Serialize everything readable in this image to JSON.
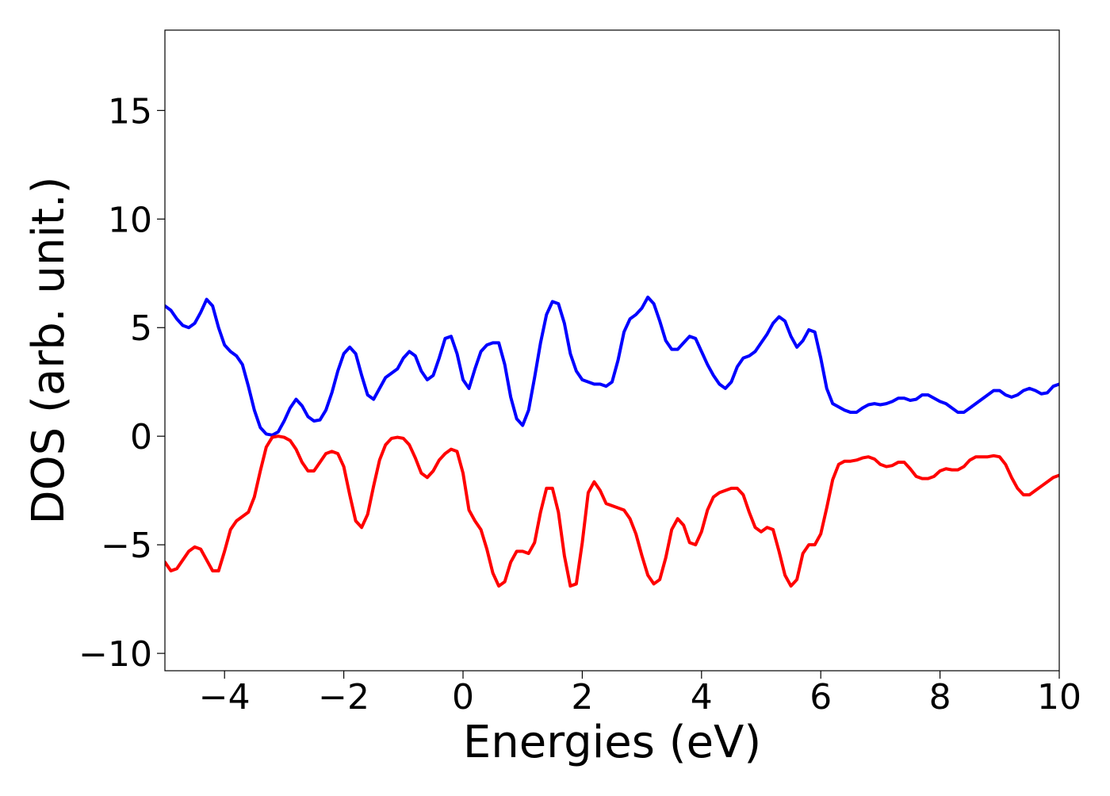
{
  "chart_data": {
    "type": "line",
    "xlabel": "Energies (eV)",
    "ylabel": "DOS (arb. unit.)",
    "xlim": [
      -5,
      10
    ],
    "ylim": [
      -10.8,
      18.7
    ],
    "xticks": [
      {
        "value": -4,
        "label": "−4"
      },
      {
        "value": -2,
        "label": "−2"
      },
      0,
      2,
      4,
      6,
      8,
      10
    ],
    "yticks": [
      {
        "value": -10,
        "label": "−10"
      },
      {
        "value": -5,
        "label": "−5"
      },
      0,
      5,
      10,
      15
    ],
    "x": [
      -5,
      -4.9,
      -4.8,
      -4.7,
      -4.6,
      -4.5,
      -4.4,
      -4.3,
      -4.2,
      -4.1,
      -4,
      -3.9,
      -3.8,
      -3.7,
      -3.6,
      -3.5,
      -3.4,
      -3.3,
      -3.2,
      -3.1,
      -3,
      -2.9,
      -2.8,
      -2.7,
      -2.6,
      -2.5,
      -2.4,
      -2.3,
      -2.2,
      -2.1,
      -2,
      -1.9,
      -1.8,
      -1.7,
      -1.6,
      -1.5,
      -1.4,
      -1.3,
      -1.2,
      -1.1,
      -1,
      -0.9,
      -0.8,
      -0.7,
      -0.6,
      -0.5,
      -0.4,
      -0.3,
      -0.2,
      -0.1,
      0,
      0.1,
      0.2,
      0.3,
      0.4,
      0.5,
      0.6,
      0.7,
      0.8,
      0.9,
      1,
      1.1,
      1.2,
      1.3,
      1.4,
      1.5,
      1.6,
      1.7,
      1.8,
      1.9,
      2,
      2.1,
      2.2,
      2.3,
      2.4,
      2.5,
      2.6,
      2.7,
      2.8,
      2.9,
      3,
      3.1,
      3.2,
      3.3,
      3.4,
      3.5,
      3.6,
      3.7,
      3.8,
      3.9,
      4,
      4.1,
      4.2,
      4.3,
      4.4,
      4.5,
      4.6,
      4.7,
      4.8,
      4.9,
      5,
      5.1,
      5.2,
      5.3,
      5.4,
      5.5,
      5.6,
      5.7,
      5.8,
      5.9,
      6,
      6.1,
      6.2,
      6.3,
      6.4,
      6.5,
      6.6,
      6.7,
      6.8,
      6.9,
      7,
      7.1,
      7.2,
      7.3,
      7.4,
      7.5,
      7.6,
      7.7,
      7.8,
      7.9,
      8,
      8.1,
      8.2,
      8.3,
      8.4,
      8.5,
      8.6,
      8.7,
      8.8,
      8.9,
      9,
      9.1,
      9.2,
      9.3,
      9.4,
      9.5,
      9.6,
      9.7,
      9.8,
      9.9,
      10
    ],
    "series": [
      {
        "color": "#0000ff",
        "values": [
          6.0,
          5.8,
          5.4,
          5.1,
          5.0,
          5.2,
          5.7,
          6.3,
          6.0,
          5.0,
          4.2,
          3.9,
          3.7,
          3.3,
          2.3,
          1.2,
          0.4,
          0.1,
          0.05,
          0.2,
          0.7,
          1.3,
          1.7,
          1.4,
          0.9,
          0.7,
          0.75,
          1.2,
          2.0,
          3.0,
          3.8,
          4.1,
          3.8,
          2.8,
          1.9,
          1.7,
          2.2,
          2.7,
          2.9,
          3.1,
          3.6,
          3.9,
          3.7,
          3.0,
          2.6,
          2.8,
          3.6,
          4.5,
          4.6,
          3.8,
          2.6,
          2.2,
          3.1,
          3.9,
          4.2,
          4.3,
          4.3,
          3.3,
          1.8,
          0.8,
          0.5,
          1.2,
          2.7,
          4.3,
          5.6,
          6.2,
          6.1,
          5.2,
          3.8,
          3.0,
          2.6,
          2.5,
          2.4,
          2.4,
          2.3,
          2.5,
          3.5,
          4.8,
          5.4,
          5.6,
          5.9,
          6.4,
          6.1,
          5.3,
          4.4,
          4.0,
          4.0,
          4.3,
          4.6,
          4.5,
          3.9,
          3.3,
          2.8,
          2.4,
          2.2,
          2.5,
          3.2,
          3.6,
          3.7,
          3.9,
          4.3,
          4.7,
          5.2,
          5.5,
          5.3,
          4.6,
          4.1,
          4.4,
          4.9,
          4.8,
          3.6,
          2.2,
          1.5,
          1.35,
          1.2,
          1.1,
          1.1,
          1.3,
          1.45,
          1.5,
          1.45,
          1.5,
          1.6,
          1.75,
          1.75,
          1.65,
          1.7,
          1.9,
          1.9,
          1.75,
          1.6,
          1.5,
          1.3,
          1.1,
          1.1,
          1.3,
          1.5,
          1.7,
          1.9,
          2.1,
          2.1,
          1.9,
          1.8,
          1.9,
          2.1,
          2.2,
          2.1,
          1.95,
          2.0,
          2.3,
          2.4
        ]
      },
      {
        "color": "#ff0000",
        "values": [
          -5.8,
          -6.2,
          -6.1,
          -5.7,
          -5.3,
          -5.1,
          -5.2,
          -5.7,
          -6.2,
          -6.2,
          -5.3,
          -4.3,
          -3.9,
          -3.7,
          -3.5,
          -2.8,
          -1.6,
          -0.5,
          -0.05,
          0.0,
          -0.05,
          -0.2,
          -0.6,
          -1.2,
          -1.6,
          -1.6,
          -1.2,
          -0.8,
          -0.7,
          -0.8,
          -1.4,
          -2.7,
          -3.9,
          -4.2,
          -3.6,
          -2.3,
          -1.1,
          -0.4,
          -0.1,
          -0.05,
          -0.1,
          -0.4,
          -1.0,
          -1.7,
          -1.9,
          -1.6,
          -1.1,
          -0.8,
          -0.6,
          -0.7,
          -1.7,
          -3.4,
          -3.9,
          -4.3,
          -5.2,
          -6.3,
          -6.9,
          -6.7,
          -5.8,
          -5.3,
          -5.3,
          -5.4,
          -4.9,
          -3.5,
          -2.4,
          -2.4,
          -3.5,
          -5.5,
          -6.9,
          -6.8,
          -4.9,
          -2.6,
          -2.1,
          -2.5,
          -3.1,
          -3.2,
          -3.3,
          -3.4,
          -3.8,
          -4.5,
          -5.5,
          -6.4,
          -6.8,
          -6.6,
          -5.6,
          -4.3,
          -3.8,
          -4.1,
          -4.9,
          -5.0,
          -4.4,
          -3.4,
          -2.8,
          -2.6,
          -2.5,
          -2.4,
          -2.4,
          -2.7,
          -3.5,
          -4.2,
          -4.4,
          -4.2,
          -4.3,
          -5.3,
          -6.4,
          -6.9,
          -6.6,
          -5.4,
          -5.0,
          -5.0,
          -4.5,
          -3.3,
          -2.0,
          -1.3,
          -1.15,
          -1.15,
          -1.1,
          -1.0,
          -0.95,
          -1.05,
          -1.3,
          -1.4,
          -1.35,
          -1.2,
          -1.2,
          -1.5,
          -1.85,
          -1.95,
          -1.95,
          -1.85,
          -1.6,
          -1.5,
          -1.55,
          -1.55,
          -1.4,
          -1.1,
          -0.95,
          -0.95,
          -0.95,
          -0.9,
          -0.95,
          -1.3,
          -1.9,
          -2.4,
          -2.7,
          -2.7,
          -2.5,
          -2.3,
          -2.1,
          -1.9,
          -1.8
        ]
      }
    ]
  }
}
